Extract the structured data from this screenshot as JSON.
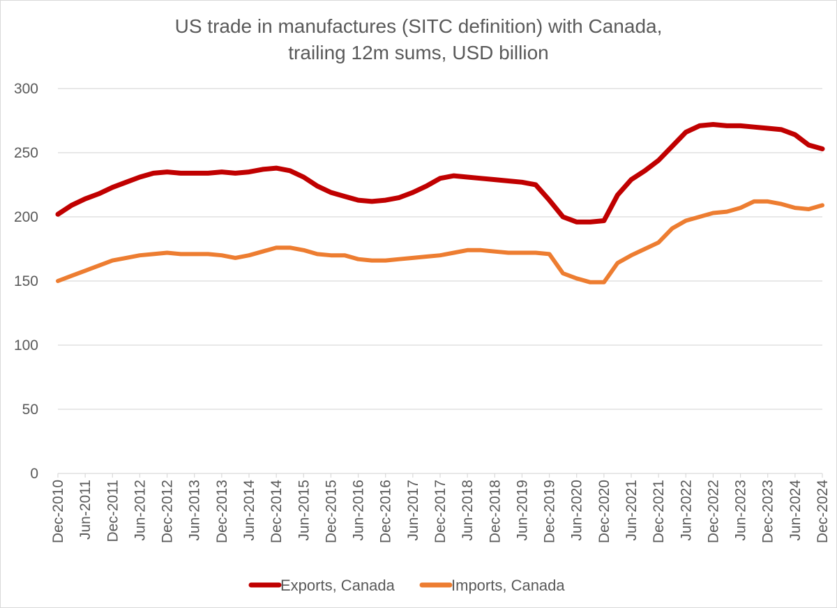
{
  "chart_data": {
    "type": "line",
    "title": "US trade in manufactures (SITC definition) with Canada,",
    "subtitle": "trailing 12m sums, USD billion",
    "xlabel": "",
    "ylabel": "",
    "ylim": [
      0,
      300
    ],
    "yticks": [
      0,
      50,
      100,
      150,
      200,
      250,
      300
    ],
    "grid": "horizontal",
    "legend_position": "bottom",
    "x_start": "Dec-2010",
    "x_end": "Dec-2024",
    "x_tick_labels": [
      "Dec-2010",
      "Jun-2011",
      "Dec-2011",
      "Jun-2012",
      "Dec-2012",
      "Jun-2013",
      "Dec-2013",
      "Jun-2014",
      "Dec-2014",
      "Jun-2015",
      "Dec-2015",
      "Jun-2016",
      "Dec-2016",
      "Jun-2017",
      "Dec-2017",
      "Jun-2018",
      "Dec-2018",
      "Jun-2019",
      "Dec-2019",
      "Jun-2020",
      "Dec-2020",
      "Jun-2021",
      "Dec-2021",
      "Jun-2022",
      "Dec-2022",
      "Jun-2023",
      "Dec-2023",
      "Jun-2024",
      "Dec-2024"
    ],
    "series": [
      {
        "name": "Exports, Canada",
        "color": "#c00000",
        "x": [
          "Dec-2010",
          "Mar-2011",
          "Jun-2011",
          "Sep-2011",
          "Dec-2011",
          "Mar-2012",
          "Jun-2012",
          "Sep-2012",
          "Dec-2012",
          "Mar-2013",
          "Jun-2013",
          "Sep-2013",
          "Dec-2013",
          "Mar-2014",
          "Jun-2014",
          "Sep-2014",
          "Dec-2014",
          "Mar-2015",
          "Jun-2015",
          "Sep-2015",
          "Dec-2015",
          "Mar-2016",
          "Jun-2016",
          "Sep-2016",
          "Dec-2016",
          "Mar-2017",
          "Jun-2017",
          "Sep-2017",
          "Dec-2017",
          "Mar-2018",
          "Jun-2018",
          "Sep-2018",
          "Dec-2018",
          "Mar-2019",
          "Jun-2019",
          "Sep-2019",
          "Dec-2019",
          "Mar-2020",
          "Jun-2020",
          "Sep-2020",
          "Dec-2020",
          "Mar-2021",
          "Jun-2021",
          "Sep-2021",
          "Dec-2021",
          "Mar-2022",
          "Jun-2022",
          "Sep-2022",
          "Dec-2022",
          "Mar-2023",
          "Jun-2023",
          "Sep-2023",
          "Dec-2023",
          "Mar-2024",
          "Jun-2024",
          "Sep-2024",
          "Dec-2024"
        ],
        "values": [
          202,
          209,
          214,
          218,
          223,
          227,
          231,
          234,
          235,
          234,
          234,
          234,
          235,
          234,
          235,
          237,
          238,
          236,
          231,
          224,
          219,
          216,
          213,
          212,
          213,
          215,
          219,
          224,
          230,
          232,
          231,
          230,
          229,
          228,
          227,
          225,
          213,
          200,
          196,
          196,
          197,
          217,
          229,
          236,
          244,
          255,
          266,
          271,
          272,
          271,
          271,
          270,
          269,
          268,
          264,
          256,
          253
        ]
      },
      {
        "name": "Imports, Canada",
        "color": "#ed7d31",
        "x": [
          "Dec-2010",
          "Mar-2011",
          "Jun-2011",
          "Sep-2011",
          "Dec-2011",
          "Mar-2012",
          "Jun-2012",
          "Sep-2012",
          "Dec-2012",
          "Mar-2013",
          "Jun-2013",
          "Sep-2013",
          "Dec-2013",
          "Mar-2014",
          "Jun-2014",
          "Sep-2014",
          "Dec-2014",
          "Mar-2015",
          "Jun-2015",
          "Sep-2015",
          "Dec-2015",
          "Mar-2016",
          "Jun-2016",
          "Sep-2016",
          "Dec-2016",
          "Mar-2017",
          "Jun-2017",
          "Sep-2017",
          "Dec-2017",
          "Mar-2018",
          "Jun-2018",
          "Sep-2018",
          "Dec-2018",
          "Mar-2019",
          "Jun-2019",
          "Sep-2019",
          "Dec-2019",
          "Mar-2020",
          "Jun-2020",
          "Sep-2020",
          "Dec-2020",
          "Mar-2021",
          "Jun-2021",
          "Sep-2021",
          "Dec-2021",
          "Mar-2022",
          "Jun-2022",
          "Sep-2022",
          "Dec-2022",
          "Mar-2023",
          "Jun-2023",
          "Sep-2023",
          "Dec-2023",
          "Mar-2024",
          "Jun-2024",
          "Sep-2024",
          "Dec-2024"
        ],
        "values": [
          150,
          154,
          158,
          162,
          166,
          168,
          170,
          171,
          172,
          171,
          171,
          171,
          170,
          168,
          170,
          173,
          176,
          176,
          174,
          171,
          170,
          170,
          167,
          166,
          166,
          167,
          168,
          169,
          170,
          172,
          174,
          174,
          173,
          172,
          172,
          172,
          171,
          156,
          152,
          149,
          149,
          164,
          170,
          175,
          180,
          191,
          197,
          200,
          203,
          204,
          207,
          212,
          212,
          210,
          207,
          206,
          209
        ]
      }
    ]
  }
}
